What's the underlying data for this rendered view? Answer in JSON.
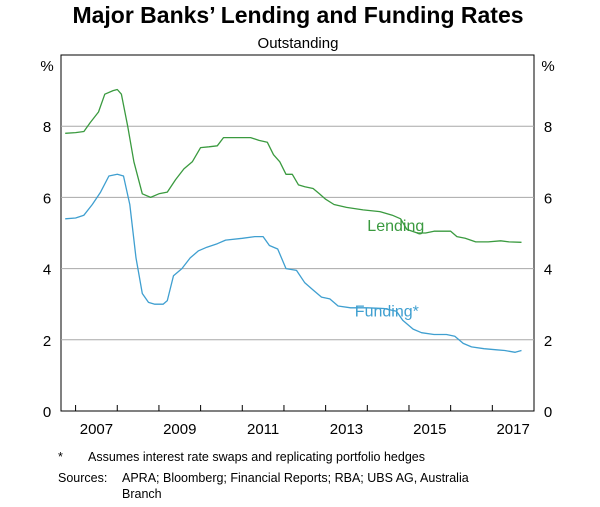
{
  "chart_data": {
    "type": "line",
    "title": "Major Banks’ Lending and Funding Rates",
    "subtitle": "Outstanding",
    "y_unit_left": "%",
    "y_unit_right": "%",
    "ylim": [
      0,
      10
    ],
    "xlim": [
      2006.65,
      2018.0
    ],
    "y_ticks": [
      "0",
      "2",
      "4",
      "6",
      "8"
    ],
    "x_ticks": [
      "2007",
      "2009",
      "2011",
      "2013",
      "2015",
      "2017"
    ],
    "grid": true,
    "series": [
      {
        "name": "Lending",
        "color": "#3a9a3f",
        "points": [
          [
            2006.75,
            7.8
          ],
          [
            2007.0,
            7.82
          ],
          [
            2007.2,
            7.85
          ],
          [
            2007.35,
            8.1
          ],
          [
            2007.55,
            8.4
          ],
          [
            2007.7,
            8.9
          ],
          [
            2007.9,
            9.0
          ],
          [
            2008.0,
            9.03
          ],
          [
            2008.1,
            8.9
          ],
          [
            2008.25,
            8.0
          ],
          [
            2008.4,
            7.0
          ],
          [
            2008.6,
            6.1
          ],
          [
            2008.8,
            6.0
          ],
          [
            2009.0,
            6.1
          ],
          [
            2009.2,
            6.15
          ],
          [
            2009.4,
            6.5
          ],
          [
            2009.6,
            6.8
          ],
          [
            2009.8,
            7.0
          ],
          [
            2010.0,
            7.4
          ],
          [
            2010.2,
            7.42
          ],
          [
            2010.4,
            7.45
          ],
          [
            2010.55,
            7.68
          ],
          [
            2010.8,
            7.68
          ],
          [
            2011.2,
            7.68
          ],
          [
            2011.4,
            7.6
          ],
          [
            2011.6,
            7.55
          ],
          [
            2011.75,
            7.2
          ],
          [
            2011.9,
            7.0
          ],
          [
            2012.05,
            6.65
          ],
          [
            2012.2,
            6.65
          ],
          [
            2012.35,
            6.35
          ],
          [
            2012.5,
            6.3
          ],
          [
            2012.7,
            6.25
          ],
          [
            2012.85,
            6.1
          ],
          [
            2013.0,
            5.95
          ],
          [
            2013.2,
            5.8
          ],
          [
            2013.5,
            5.72
          ],
          [
            2013.9,
            5.65
          ],
          [
            2014.3,
            5.6
          ],
          [
            2014.6,
            5.5
          ],
          [
            2014.8,
            5.4
          ],
          [
            2014.95,
            5.1
          ],
          [
            2015.2,
            5.0
          ],
          [
            2015.4,
            5.0
          ],
          [
            2015.6,
            5.05
          ],
          [
            2015.8,
            5.05
          ],
          [
            2016.0,
            5.05
          ],
          [
            2016.15,
            4.9
          ],
          [
            2016.35,
            4.85
          ],
          [
            2016.6,
            4.75
          ],
          [
            2016.9,
            4.75
          ],
          [
            2017.2,
            4.78
          ],
          [
            2017.4,
            4.75
          ],
          [
            2017.7,
            4.74
          ]
        ]
      },
      {
        "name": "Funding*",
        "color": "#3f9fd0",
        "points": [
          [
            2006.75,
            5.4
          ],
          [
            2007.0,
            5.42
          ],
          [
            2007.2,
            5.5
          ],
          [
            2007.4,
            5.8
          ],
          [
            2007.6,
            6.15
          ],
          [
            2007.8,
            6.6
          ],
          [
            2008.0,
            6.65
          ],
          [
            2008.15,
            6.6
          ],
          [
            2008.3,
            5.8
          ],
          [
            2008.45,
            4.3
          ],
          [
            2008.6,
            3.3
          ],
          [
            2008.75,
            3.05
          ],
          [
            2008.9,
            3.0
          ],
          [
            2009.1,
            3.0
          ],
          [
            2009.2,
            3.1
          ],
          [
            2009.35,
            3.8
          ],
          [
            2009.55,
            4.0
          ],
          [
            2009.75,
            4.3
          ],
          [
            2009.95,
            4.5
          ],
          [
            2010.15,
            4.6
          ],
          [
            2010.4,
            4.7
          ],
          [
            2010.6,
            4.8
          ],
          [
            2011.0,
            4.85
          ],
          [
            2011.3,
            4.9
          ],
          [
            2011.5,
            4.9
          ],
          [
            2011.65,
            4.65
          ],
          [
            2011.85,
            4.55
          ],
          [
            2012.05,
            4.0
          ],
          [
            2012.3,
            3.95
          ],
          [
            2012.5,
            3.6
          ],
          [
            2012.7,
            3.4
          ],
          [
            2012.9,
            3.2
          ],
          [
            2013.1,
            3.15
          ],
          [
            2013.3,
            2.95
          ],
          [
            2013.6,
            2.9
          ],
          [
            2014.0,
            2.9
          ],
          [
            2014.4,
            2.88
          ],
          [
            2014.7,
            2.8
          ],
          [
            2014.85,
            2.55
          ],
          [
            2015.1,
            2.3
          ],
          [
            2015.3,
            2.2
          ],
          [
            2015.6,
            2.15
          ],
          [
            2015.9,
            2.15
          ],
          [
            2016.1,
            2.1
          ],
          [
            2016.3,
            1.9
          ],
          [
            2016.5,
            1.8
          ],
          [
            2016.8,
            1.75
          ],
          [
            2017.1,
            1.72
          ],
          [
            2017.3,
            1.7
          ],
          [
            2017.55,
            1.65
          ],
          [
            2017.7,
            1.7
          ]
        ]
      }
    ],
    "annotations": [
      {
        "text": "Lending",
        "x": 2014.0,
        "y": 5.05,
        "color": "#3a9a3f"
      },
      {
        "text": "Funding*",
        "x": 2013.7,
        "y": 2.65,
        "color": "#3f9fd0"
      }
    ]
  },
  "footnote": {
    "marker": "*",
    "text": "Assumes interest rate swaps and replicating portfolio hedges"
  },
  "sources": {
    "label": "Sources:",
    "line1": "APRA; Bloomberg; Financial Reports; RBA; UBS AG, Australia",
    "line2": "Branch"
  }
}
